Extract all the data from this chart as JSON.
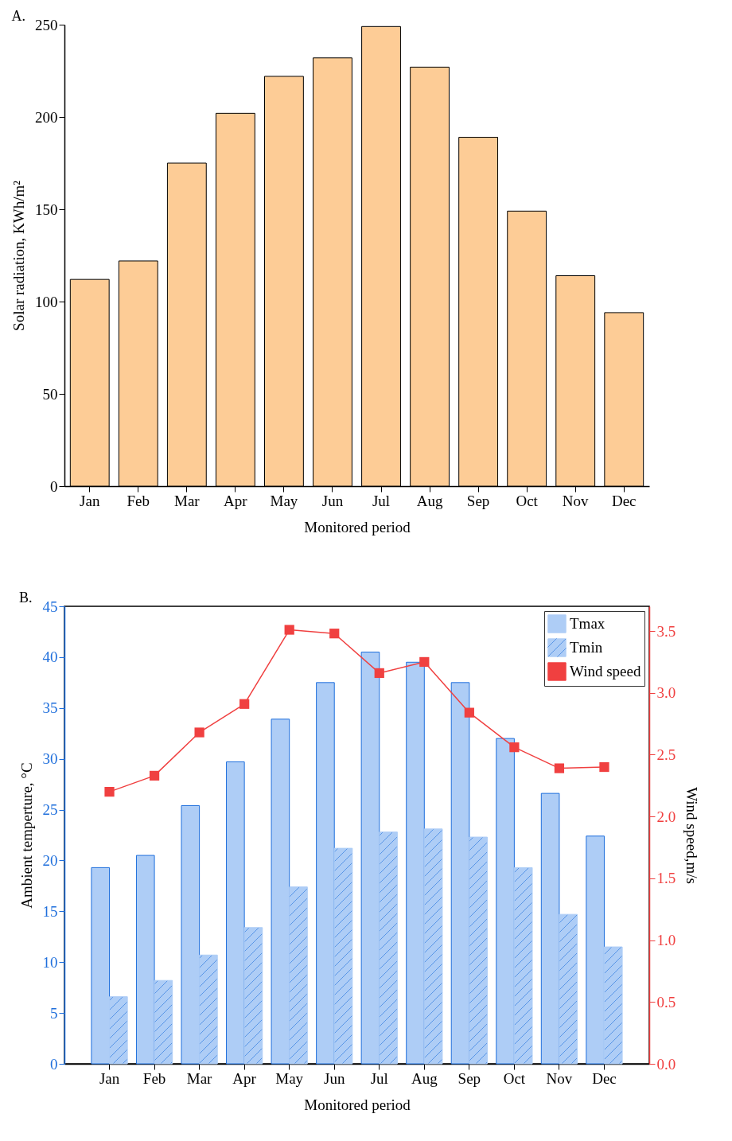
{
  "chart_data": [
    {
      "type": "bar",
      "title": "A.",
      "xlabel": "Monitored period",
      "ylabel": "Solar radiation, KWh/m²",
      "categories": [
        "Jan",
        "Feb",
        "Mar",
        "Apr",
        "May",
        "Jun",
        "Jul",
        "Aug",
        "Sep",
        "Oct",
        "Nov",
        "Dec"
      ],
      "values": [
        112,
        122,
        175,
        202,
        222,
        232,
        249,
        227,
        189,
        149,
        114,
        94
      ],
      "color": "#fdcc96",
      "ylim": [
        0,
        250
      ],
      "yticks": [
        0,
        50,
        100,
        150,
        200,
        250
      ]
    },
    {
      "type": "bar",
      "title": "B.",
      "xlabel": "Monitored period",
      "ylabel": "Ambient temperture, °C",
      "y2label": "Wind speed,m/s",
      "categories": [
        "Jan",
        "Feb",
        "Mar",
        "Apr",
        "May",
        "Jun",
        "Jul",
        "Aug",
        "Sep",
        "Oct",
        "Nov",
        "Dec"
      ],
      "series": [
        {
          "name": "Tmax",
          "color": "#aecdf6",
          "values": [
            19.3,
            20.5,
            25.4,
            29.7,
            33.9,
            37.5,
            40.5,
            39.5,
            37.5,
            32.0,
            26.6,
            22.4
          ]
        },
        {
          "name": "Tmin",
          "color": "#aecdf6",
          "values": [
            6.6,
            8.2,
            10.7,
            13.4,
            17.4,
            21.2,
            22.8,
            23.1,
            22.3,
            19.3,
            14.7,
            11.5
          ]
        },
        {
          "name": "Wind speed",
          "type": "line",
          "axis": "y2",
          "marker": "square",
          "color": "#f04040",
          "values": [
            2.2,
            2.33,
            2.68,
            2.91,
            3.51,
            3.48,
            3.16,
            3.25,
            2.84,
            2.56,
            2.39,
            2.4
          ]
        }
      ],
      "ylim": [
        0,
        45
      ],
      "yticks": [
        0,
        5,
        10,
        15,
        20,
        25,
        30,
        35,
        40,
        45
      ],
      "y2lim": [
        0,
        3.7
      ],
      "y2ticks": [
        {
          "value": 0,
          "label": "0.0"
        },
        0.5,
        {
          "value": 1,
          "label": "1.0"
        },
        1.5,
        {
          "value": 2,
          "label": "2.0"
        },
        2.5,
        {
          "value": 3,
          "label": "3.0"
        },
        3.5
      ],
      "legend": "top right"
    }
  ]
}
